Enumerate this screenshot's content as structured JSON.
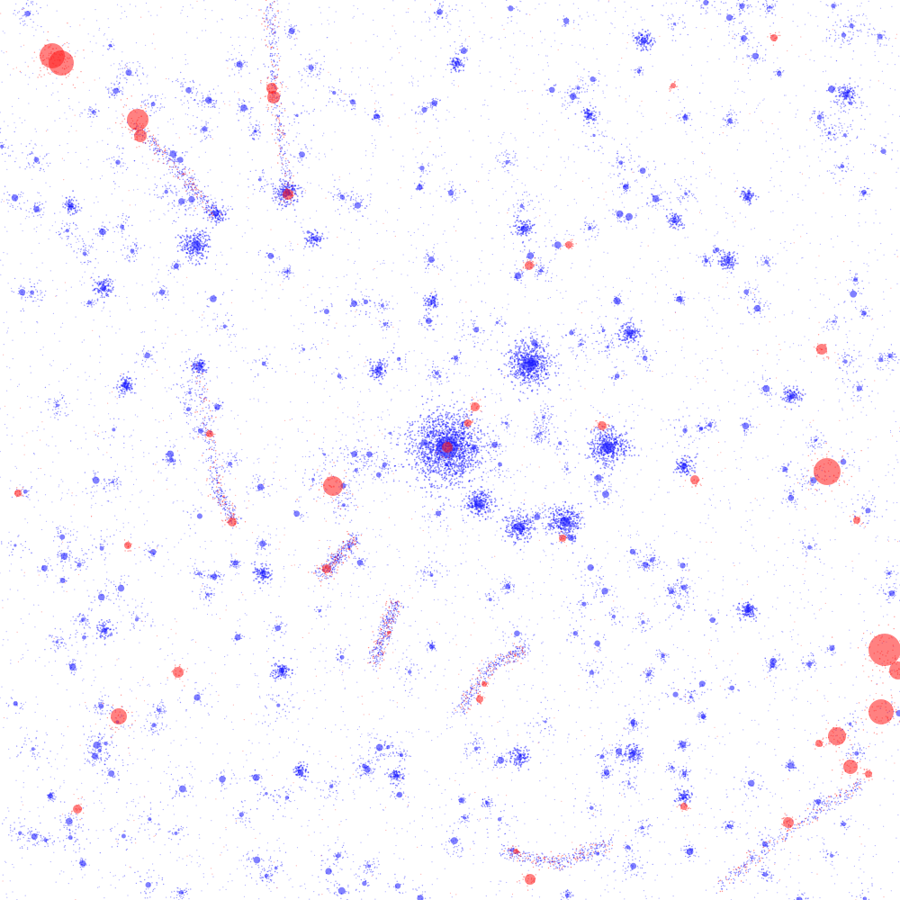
{
  "colors": {
    "background": "#ffffff",
    "blue_particles": "#1a1aff",
    "red_particles": "#ff1a1a"
  }
}
